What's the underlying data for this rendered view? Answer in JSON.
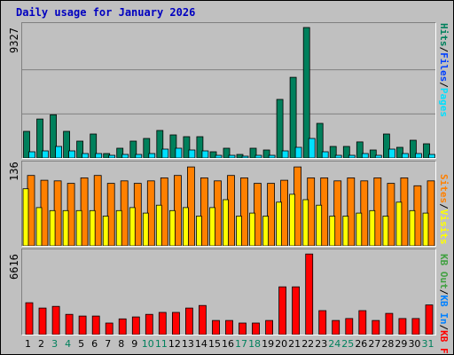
{
  "title": "Daily usage for January 2026",
  "colors": {
    "hits": "#00805c",
    "files": "#0040ff",
    "pages": "#00e0ff",
    "visits": "#ffff00",
    "sites": "#ff8000",
    "kb_out": "#40a040",
    "kb_in": "#0080ff",
    "kb_f": "#ff0000",
    "weekday_text": "#000000",
    "weekend_text": "#00805c"
  },
  "chart_data": [
    {
      "type": "bar",
      "name": "hits-files-pages",
      "categories": [
        "1",
        "2",
        "3",
        "4",
        "5",
        "6",
        "7",
        "8",
        "9",
        "10",
        "11",
        "12",
        "13",
        "14",
        "15",
        "16",
        "17",
        "18",
        "19",
        "20",
        "21",
        "22",
        "23",
        "24",
        "25",
        "26",
        "27",
        "28",
        "29",
        "30",
        "31"
      ],
      "ymax_label": "9327",
      "ylim": [
        0,
        9327
      ],
      "gridlines": [
        3109,
        6218
      ],
      "right_labels": [
        "Pages",
        "Files",
        "Hits"
      ],
      "series": [
        {
          "name": "Hits",
          "color": "#00805c",
          "values": [
            1880,
            2750,
            3050,
            1880,
            1190,
            1690,
            313,
            690,
            1190,
            1380,
            1940,
            1630,
            1500,
            1500,
            438,
            688,
            250,
            688,
            563,
            4130,
            5690,
            9200,
            2440,
            813,
            813,
            1130,
            563,
            1690,
            750,
            1250,
            1000
          ]
        },
        {
          "name": "Files",
          "color": "#0040ff",
          "values": [
            0,
            0,
            0,
            0,
            0,
            0,
            0,
            0,
            0,
            0,
            0,
            0,
            0,
            0,
            0,
            0,
            0,
            0,
            0,
            0,
            0,
            0,
            0,
            0,
            0,
            0,
            0,
            0,
            0,
            0,
            0
          ]
        },
        {
          "name": "Pages",
          "color": "#00e0ff",
          "values": [
            438,
            500,
            813,
            500,
            313,
            313,
            188,
            250,
            250,
            313,
            625,
            688,
            563,
            500,
            188,
            188,
            125,
            188,
            188,
            500,
            750,
            1380,
            438,
            188,
            188,
            313,
            188,
            625,
            313,
            313,
            250
          ]
        }
      ]
    },
    {
      "type": "bar",
      "name": "visits-sites",
      "categories": [
        "1",
        "2",
        "3",
        "4",
        "5",
        "6",
        "7",
        "8",
        "9",
        "10",
        "11",
        "12",
        "13",
        "14",
        "15",
        "16",
        "17",
        "18",
        "19",
        "20",
        "21",
        "22",
        "23",
        "24",
        "25",
        "26",
        "27",
        "28",
        "29",
        "30",
        "31"
      ],
      "ymax_label": "136",
      "ylim": [
        0,
        136
      ],
      "right_labels": [
        "Visits",
        "Sites"
      ],
      "series": [
        {
          "name": "Visits",
          "color": "#ffff00",
          "values": [
            94,
            63,
            58,
            58,
            58,
            58,
            49,
            58,
            63,
            54,
            67,
            58,
            63,
            49,
            63,
            76,
            49,
            54,
            49,
            72,
            85,
            76,
            67,
            49,
            49,
            54,
            58,
            49,
            72,
            58,
            54
          ]
        },
        {
          "name": "Sites",
          "color": "#ff8000",
          "values": [
            116,
            108,
            107,
            103,
            112,
            116,
            103,
            107,
            103,
            107,
            112,
            116,
            130,
            112,
            107,
            116,
            112,
            103,
            103,
            108,
            130,
            112,
            112,
            107,
            112,
            107,
            112,
            103,
            112,
            99,
            107
          ]
        }
      ]
    },
    {
      "type": "bar",
      "name": "kbytes",
      "categories": [
        "1",
        "2",
        "3",
        "4",
        "5",
        "6",
        "7",
        "8",
        "9",
        "10",
        "11",
        "12",
        "13",
        "14",
        "15",
        "16",
        "17",
        "18",
        "19",
        "20",
        "21",
        "22",
        "23",
        "24",
        "25",
        "26",
        "27",
        "28",
        "29",
        "30",
        "31"
      ],
      "ymax_label": "6616",
      "ylim": [
        0,
        6616
      ],
      "right_labels": [
        "KB F",
        "KB In",
        "KB Out"
      ],
      "series": [
        {
          "name": "KB F",
          "color": "#ff0000",
          "values": [
            2580,
            2150,
            2290,
            1640,
            1500,
            1500,
            935,
            1270,
            1430,
            1640,
            1800,
            1800,
            2150,
            2360,
            1140,
            1140,
            935,
            935,
            1140,
            3870,
            3870,
            6530,
            1940,
            1140,
            1300,
            1940,
            1140,
            1720,
            1300,
            1300,
            2400
          ]
        }
      ]
    }
  ],
  "x_axis": {
    "labels": [
      "1",
      "2",
      "3",
      "4",
      "5",
      "6",
      "7",
      "8",
      "9",
      "10",
      "11",
      "12",
      "13",
      "14",
      "15",
      "16",
      "17",
      "18",
      "19",
      "20",
      "21",
      "22",
      "23",
      "24",
      "25",
      "26",
      "27",
      "28",
      "29",
      "30",
      "31"
    ],
    "weekend": [
      3,
      4,
      10,
      11,
      17,
      18,
      24,
      25,
      31
    ]
  }
}
